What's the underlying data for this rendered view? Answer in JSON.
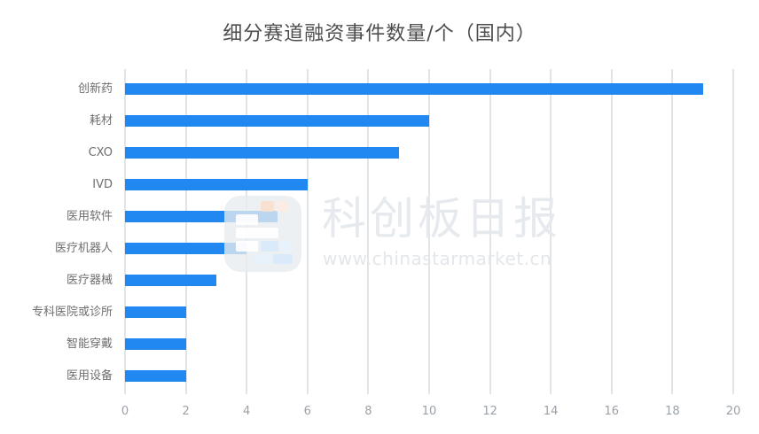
{
  "chart_data": {
    "type": "bar",
    "orientation": "horizontal",
    "title": "细分赛道融资事件数量/个（国内）",
    "categories": [
      "创新药",
      "耗材",
      "CXO",
      "IVD",
      "医用软件",
      "医疗机器人",
      "医疗器械",
      "专科医院或诊所",
      "智能穿戴",
      "医用设备"
    ],
    "values": [
      19,
      10,
      9,
      6,
      5,
      4,
      3,
      2,
      2,
      2
    ],
    "xlabel": "",
    "ylabel": "",
    "xlim": [
      0,
      20
    ],
    "ticks": [
      0,
      2,
      4,
      6,
      8,
      10,
      12,
      14,
      16,
      18,
      20
    ],
    "grid": "vertical-only",
    "legend": "none",
    "bar_color": "#2188f2"
  },
  "watermark": {
    "brand": "科创板日报",
    "url": "www.chinastarmarket.cn"
  },
  "colors": {
    "background": "#ffffff",
    "title_text": "#4d4d4d",
    "category_label": "#6e6e6e",
    "tick_label": "#9ba1a8",
    "gridline": "#e3e4e6",
    "bar": "#2188f2",
    "watermark_gray": "#e8ecf0"
  }
}
